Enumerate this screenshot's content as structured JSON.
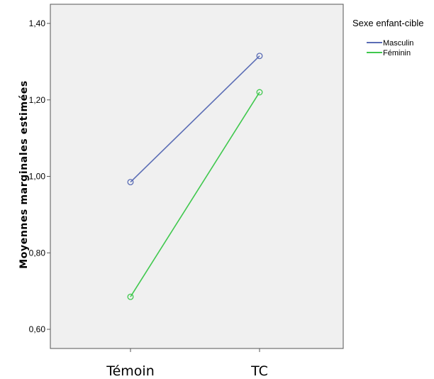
{
  "chart_data": {
    "type": "line",
    "ylabel": "Moyennes marginales estimées",
    "categories": [
      "Témoin",
      "TC"
    ],
    "y_ticks": [
      "0,60",
      "0,80",
      "1,00",
      "1,20",
      "1,40"
    ],
    "ylim": [
      0.57,
      1.45
    ],
    "grid": false,
    "plot_background": "#f0f0f0",
    "legend": {
      "title": "Sexe enfant-cible",
      "placement": "outside-right-top"
    },
    "series": [
      {
        "name": "Masculin",
        "values": [
          0.985,
          1.315
        ],
        "color": "#5b6db5"
      },
      {
        "name": "Féminin",
        "values": [
          0.685,
          1.22
        ],
        "color": "#3fc84d"
      }
    ]
  }
}
